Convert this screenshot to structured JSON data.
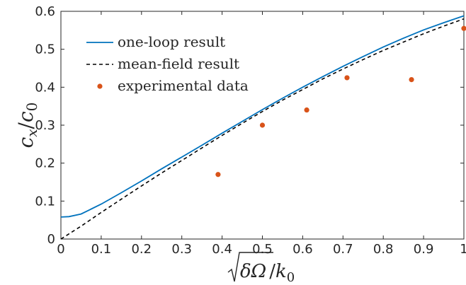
{
  "chart_data": {
    "type": "line",
    "xlabel": "√δΩ/k₀",
    "ylabel": "c_x/c_0",
    "xlim": [
      0,
      1
    ],
    "ylim": [
      0,
      0.6
    ],
    "xticks": [
      "0",
      "0.1",
      "0.2",
      "0.3",
      "0.4",
      "0.5",
      "0.6",
      "0.7",
      "0.8",
      "0.9",
      "1"
    ],
    "yticks": [
      "0",
      "0.1",
      "0.2",
      "0.3",
      "0.4",
      "0.5",
      "0.6"
    ],
    "grid": false,
    "legend_position": "top-left",
    "series": [
      {
        "name": "one-loop result",
        "style": "solid",
        "color": "#0072BD",
        "x": [
          0,
          0.02,
          0.05,
          0.1,
          0.15,
          0.2,
          0.25,
          0.3,
          0.35,
          0.4,
          0.45,
          0.5,
          0.55,
          0.6,
          0.65,
          0.7,
          0.75,
          0.8,
          0.85,
          0.9,
          0.95,
          1.0
        ],
        "y": [
          0.058,
          0.059,
          0.066,
          0.092,
          0.122,
          0.153,
          0.185,
          0.216,
          0.247,
          0.279,
          0.31,
          0.341,
          0.371,
          0.4,
          0.428,
          0.455,
          0.481,
          0.506,
          0.529,
          0.551,
          0.57,
          0.588
        ]
      },
      {
        "name": "mean-field result",
        "style": "dashed",
        "color": "#000000",
        "x": [
          0,
          0.05,
          0.1,
          0.15,
          0.2,
          0.25,
          0.3,
          0.35,
          0.4,
          0.45,
          0.5,
          0.55,
          0.6,
          0.65,
          0.7,
          0.75,
          0.8,
          0.85,
          0.9,
          0.95,
          1.0
        ],
        "y": [
          0.0,
          0.034,
          0.07,
          0.105,
          0.14,
          0.174,
          0.207,
          0.24,
          0.273,
          0.305,
          0.336,
          0.366,
          0.394,
          0.422,
          0.448,
          0.473,
          0.497,
          0.519,
          0.541,
          0.561,
          0.58
        ]
      },
      {
        "name": "experimental data",
        "style": "markers",
        "color": "#D95319",
        "x": [
          0.39,
          0.5,
          0.61,
          0.71,
          0.87,
          1.0
        ],
        "y": [
          0.17,
          0.3,
          0.34,
          0.425,
          0.42,
          0.555
        ]
      }
    ]
  }
}
